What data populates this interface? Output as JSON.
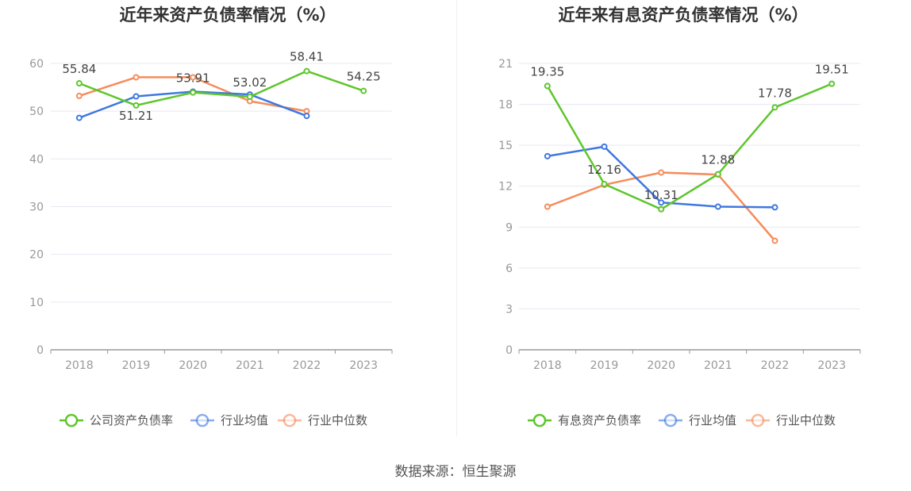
{
  "source_text": "数据来源：恒生聚源",
  "chart_data": [
    {
      "type": "line",
      "title": "近年来资产负债率情况（%）",
      "categories": [
        "2018",
        "2019",
        "2020",
        "2021",
        "2022",
        "2023"
      ],
      "ylim": [
        0,
        60
      ],
      "yticks": [
        0,
        10,
        20,
        30,
        40,
        50,
        60
      ],
      "grid": true,
      "legend_position": "bottom",
      "series": [
        {
          "name": "公司资产负债率",
          "color": "#5ec62c",
          "values": [
            55.84,
            51.21,
            53.91,
            53.02,
            58.41,
            54.25
          ],
          "show_labels": true
        },
        {
          "name": "行业均值",
          "color": "#3f78e0",
          "values": [
            48.6,
            53.1,
            54.1,
            53.5,
            49.0,
            null
          ],
          "show_labels": false
        },
        {
          "name": "行业中位数",
          "color": "#f58c5c",
          "values": [
            53.2,
            57.1,
            57.1,
            52.1,
            50.0,
            null
          ],
          "show_labels": false
        }
      ]
    },
    {
      "type": "line",
      "title": "近年来有息资产负债率情况（%）",
      "categories": [
        "2018",
        "2019",
        "2020",
        "2021",
        "2022",
        "2023"
      ],
      "ylim": [
        0,
        21
      ],
      "yticks": [
        0,
        3,
        6,
        9,
        12,
        15,
        18,
        21
      ],
      "grid": true,
      "legend_position": "bottom",
      "series": [
        {
          "name": "有息资产负债率",
          "color": "#5ec62c",
          "values": [
            19.35,
            12.16,
            10.31,
            12.88,
            17.78,
            19.51
          ],
          "show_labels": true
        },
        {
          "name": "行业均值",
          "color": "#3f78e0",
          "values": [
            14.2,
            14.9,
            10.8,
            10.5,
            10.45,
            null
          ],
          "show_labels": false
        },
        {
          "name": "行业中位数",
          "color": "#f58c5c",
          "values": [
            10.5,
            12.1,
            13.0,
            12.85,
            8.0,
            null
          ],
          "show_labels": false
        }
      ]
    }
  ]
}
